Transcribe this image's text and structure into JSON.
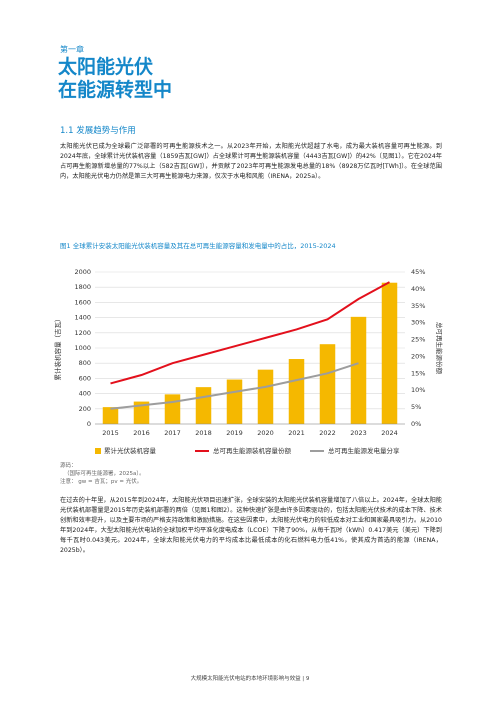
{
  "header": {
    "chapter": "第一章",
    "title_line1": "太阳能光伏",
    "title_line2": "在能源转型中"
  },
  "section": {
    "heading": "1.1 发展趋势与作用",
    "paragraph1": "太阳能光伏已成为全球最广泛部署的可再生能源技术之一。从2023年开始，太阳能光伏超越了水电，成为最大装机容量可再生能源。到2024年底，全球累计光伏装机容量（1859吉瓦[GW]）占全球累计可再生能源装机容量（4443吉瓦[GW]）的42%（见图1）。它在2024年占可再生能源新增总量的77%以上（582吉瓦[GW]），并贡献了2023年可再生能源发电总量的18%（8928万亿瓦时[TWh]）。在全球范围内，太阳能光伏电力仍然是第三大可再生能源电力来源，仅次于水电和风能（IRENA，2025a）。",
    "paragraph2": "在过去的十年里，从2015年到2024年，太阳能光伏项目迅速扩张，全球安装的太阳能光伏装机容量增加了八倍以上。2024年，全球太阳能光伏装机部署量是2015年历史装机部署的两倍（见图1和图2）。这种快速扩张是由许多因素驱动的，包括太阳能光伏技术的成本下降、技术创新和效率提升，以及主要市场的严格支持政策和激励措施。在这些因素中，太阳能光伏电力的较低成本对工业和国家最具吸引力。从2010年到2024年，大型太阳能光伏电站的全球加权平均平准化度电成本（LCOE）下降了90%，从每千瓦时（kWh）0.417美元（美元）下降到每千瓦时0.043美元。2024年，全球太阳能光伏电力的平均成本比最低成本的化石燃料电力低41%，使其成为首选的能源（IRENA，2025b）。"
  },
  "figure": {
    "caption": "图1  全球累计安装太阳能光伏装机容量及其在总可再生能源容量和发电量中的占比，2015-2024",
    "source_label": "源码：",
    "source": "（国际可再生能源署，2025a）。",
    "note_label": "注意：",
    "note": "gw = 吉瓦；pv = 光伏。"
  },
  "chart_data": {
    "type": "bar-line",
    "ylabel": "累计装机容量（吉瓦）",
    "y2label": "总可再生能源份额",
    "categories": [
      "2015",
      "2016",
      "2017",
      "2018",
      "2019",
      "2020",
      "2021",
      "2022",
      "2023",
      "2024"
    ],
    "ylim": [
      0,
      2000
    ],
    "yticks": [
      0,
      200,
      400,
      600,
      800,
      1000,
      1200,
      1400,
      1600,
      1800,
      2000
    ],
    "y2lim": [
      0,
      45
    ],
    "y2ticks": [
      {
        "value": 0,
        "label": "0%"
      },
      {
        "value": 5,
        "label": "5%"
      },
      {
        "value": 10,
        "label": "10%"
      },
      {
        "value": 15,
        "label": "15%"
      },
      {
        "value": 20,
        "label": "20%"
      },
      {
        "value": 25,
        "label": "25%"
      },
      {
        "value": 30,
        "label": "30%"
      },
      {
        "value": 35,
        "label": "35%"
      },
      {
        "value": 40,
        "label": "40%"
      },
      {
        "value": 45,
        "label": "45%"
      }
    ],
    "series": [
      {
        "name": "累计光伏装机容量",
        "kind": "bar",
        "color": "#f5b800",
        "values": [
          222,
          295,
          390,
          485,
          585,
          715,
          855,
          1050,
          1410,
          1859
        ]
      },
      {
        "name": "总可再生能源装机容量份额",
        "kind": "line",
        "axis": "y2",
        "color": "#e3101c",
        "values": [
          12,
          14.5,
          18,
          20.5,
          23,
          25.5,
          28,
          31,
          37,
          42
        ]
      },
      {
        "name": "总可再生能源发电量分享",
        "kind": "line",
        "axis": "y2",
        "color": "#9d9d9d",
        "values": [
          4.5,
          5.5,
          6.5,
          8,
          9.5,
          11,
          13,
          15,
          18,
          null
        ]
      }
    ]
  },
  "footer": {
    "text": "大规模太阳能光伏电站的本地环境影响与效益 | 9"
  }
}
